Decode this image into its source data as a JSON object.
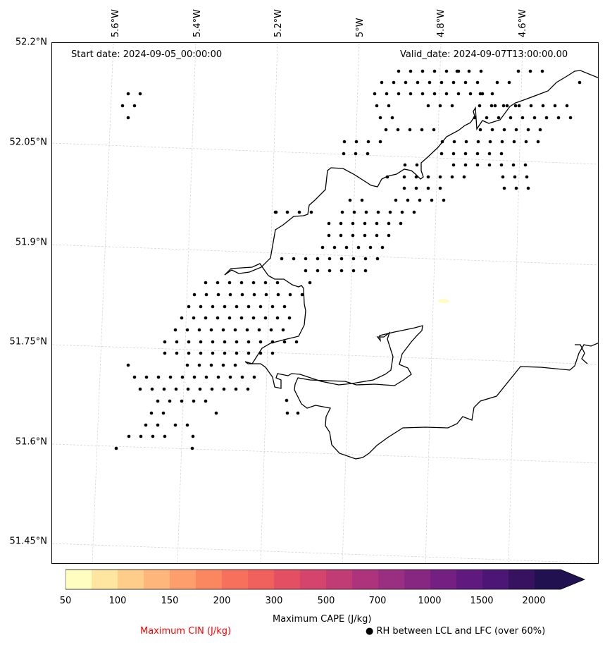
{
  "map": {
    "start_date": "Start date: 2024-09-05_00:00:00",
    "valid_date": "Valid_date: 2024-09-07T13:00:00.00",
    "lat_labels": [
      "52.2°N",
      "52.05°N",
      "51.9°N",
      "51.75°N",
      "51.6°N",
      "51.45°N"
    ],
    "lon_labels": [
      "5.6°W",
      "5.4°W",
      "5.2°W",
      "5°W",
      "4.8°W",
      "4.6°W"
    ],
    "marker_meaning": "RH between LCL and LFC (over 60%)",
    "cin_label": "Maximum CIN (J/kg)",
    "cin_label_color": "#ff0000"
  },
  "colorbar": {
    "label": "Maximum CAPE (J/kg)",
    "ticks": [
      "50",
      "100",
      "150",
      "200",
      "300",
      "500",
      "700",
      "1000",
      "1500",
      "2000"
    ],
    "levels": [
      50,
      75,
      100,
      125,
      150,
      175,
      200,
      250,
      300,
      400,
      500,
      600,
      700,
      850,
      1000,
      1250,
      1500,
      1750,
      2000
    ],
    "colors": [
      "#fffdbf",
      "#fee5a0",
      "#fecd8a",
      "#feb67a",
      "#fd9e6c",
      "#fb8761",
      "#f7705c",
      "#f0605d",
      "#e44f64",
      "#d5446d",
      "#c13b75",
      "#ad347c",
      "#9a2e80",
      "#872781",
      "#741f82",
      "#601a7f",
      "#4b1676",
      "#361260",
      "#221150"
    ],
    "extend": "max"
  },
  "footer": {
    "marker_legend_symbol": "●",
    "marker_legend_text": "RH between LCL and LFC (over 60%)"
  }
}
